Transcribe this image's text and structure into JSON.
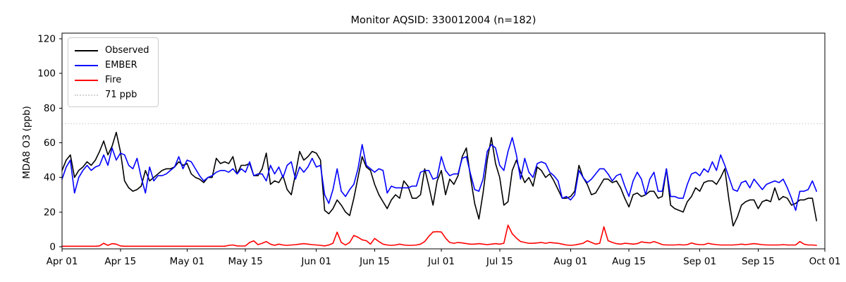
{
  "title": "Monitor AQSID: 330012004 (n=182)",
  "ylabel": "MDA8 O3 (ppb)",
  "legend": {
    "items": [
      {
        "label": "Observed",
        "color": "#000000",
        "style": "solid"
      },
      {
        "label": "EMBER",
        "color": "#0000ff",
        "style": "solid"
      },
      {
        "label": "Fire",
        "color": "#ff0000",
        "style": "solid"
      },
      {
        "label": "71 ppb",
        "color": "#d3d3d3",
        "style": "dotted"
      }
    ]
  },
  "chart_data": {
    "type": "line",
    "title": "Monitor AQSID: 330012004 (n=182)",
    "xlabel": "",
    "ylabel": "MDA8 O3 (ppb)",
    "n_points": 182,
    "x_start": "Apr 01",
    "x_end_data": "Sep 29",
    "ylim": [
      0,
      124
    ],
    "yticks": [
      0,
      20,
      40,
      60,
      80,
      100,
      120
    ],
    "xtick_labels": [
      "Apr 01",
      "Apr 15",
      "May 01",
      "May 15",
      "Jun 01",
      "Jun 15",
      "Jul 01",
      "Jul 15",
      "Aug 01",
      "Aug 15",
      "Sep 01",
      "Sep 15",
      "Oct 01"
    ],
    "xtick_days": [
      0,
      14,
      30,
      44,
      61,
      75,
      91,
      105,
      122,
      136,
      153,
      167,
      183
    ],
    "x_axis_span_days": 183,
    "grid": false,
    "legend_position": "upper left",
    "threshold": {
      "value": 71,
      "label": "71 ppb",
      "color": "#d3d3d3",
      "style": "dotted"
    },
    "series": [
      {
        "name": "Observed",
        "color": "#000000",
        "values": [
          44,
          50,
          53,
          40,
          44,
          46,
          49,
          47,
          50,
          55,
          61,
          53,
          58,
          66,
          55,
          38,
          34,
          32,
          33,
          35,
          44,
          38,
          40,
          42,
          44,
          45,
          45,
          46,
          49,
          47,
          48,
          42,
          40,
          39,
          37,
          40,
          40,
          51,
          48,
          49,
          48,
          52,
          42,
          47,
          47,
          48,
          41,
          41,
          45,
          54,
          36,
          38,
          37,
          41,
          33,
          30,
          42,
          55,
          50,
          52,
          55,
          54,
          50,
          21,
          19,
          22,
          27,
          24,
          20,
          18,
          28,
          40,
          52,
          46,
          44,
          36,
          30,
          26,
          22,
          27,
          30,
          28,
          38,
          35,
          28,
          28,
          30,
          45,
          35,
          24,
          38,
          44,
          30,
          39,
          36,
          41,
          52,
          57,
          40,
          25,
          16,
          31,
          50,
          63,
          48,
          40,
          24,
          26,
          44,
          50,
          43,
          37,
          40,
          35,
          46,
          44,
          40,
          42,
          38,
          33,
          28,
          28,
          29,
          32,
          47,
          40,
          36,
          30,
          31,
          35,
          39,
          39,
          37,
          38,
          34,
          28,
          23,
          30,
          31,
          29,
          30,
          32,
          32,
          28,
          29,
          45,
          24,
          22,
          21,
          20,
          26,
          29,
          34,
          32,
          37,
          38,
          38,
          36,
          40,
          45,
          27,
          12,
          17,
          24,
          26,
          27,
          27,
          22,
          26,
          27,
          26,
          34,
          27,
          29,
          28,
          24,
          25,
          27,
          27,
          28,
          28,
          15
        ]
      },
      {
        "name": "EMBER",
        "color": "#0000ff",
        "values": [
          39,
          46,
          50,
          31,
          40,
          44,
          47,
          44,
          46,
          47,
          53,
          47,
          57,
          50,
          54,
          53,
          47,
          45,
          51,
          40,
          31,
          46,
          38,
          41,
          41,
          42,
          44,
          46,
          52,
          45,
          50,
          49,
          45,
          41,
          38,
          40,
          41,
          43,
          44,
          44,
          43,
          45,
          42,
          45,
          43,
          49,
          41,
          42,
          42,
          38,
          47,
          42,
          46,
          40,
          47,
          49,
          39,
          46,
          43,
          46,
          51,
          46,
          47,
          30,
          25,
          33,
          45,
          32,
          29,
          33,
          36,
          45,
          59,
          47,
          45,
          43,
          45,
          44,
          31,
          35,
          34,
          34,
          34,
          34,
          35,
          35,
          43,
          44,
          44,
          39,
          40,
          52,
          44,
          41,
          42,
          42,
          51,
          52,
          42,
          33,
          32,
          39,
          55,
          59,
          57,
          47,
          44,
          55,
          63,
          53,
          39,
          51,
          43,
          40,
          48,
          49,
          48,
          43,
          41,
          38,
          28,
          29,
          27,
          30,
          44,
          40,
          37,
          39,
          42,
          45,
          45,
          42,
          38,
          41,
          42,
          35,
          29,
          38,
          43,
          39,
          30,
          39,
          43,
          32,
          32,
          45,
          29,
          29,
          28,
          28,
          36,
          42,
          43,
          41,
          45,
          43,
          49,
          44,
          53,
          47,
          40,
          33,
          32,
          37,
          38,
          34,
          39,
          36,
          33,
          36,
          37,
          38,
          37,
          39,
          34,
          28,
          21,
          32,
          32,
          33,
          38,
          32
        ]
      },
      {
        "name": "Fire",
        "color": "#ff0000",
        "values": [
          0.3,
          0.3,
          0.3,
          0.3,
          0.3,
          0.3,
          0.3,
          0.3,
          0.3,
          0.5,
          2,
          0.8,
          1.8,
          1.5,
          0.5,
          0.3,
          0.3,
          0.3,
          0.3,
          0.3,
          0.3,
          0.3,
          0.3,
          0.3,
          0.3,
          0.3,
          0.3,
          0.3,
          0.3,
          0.3,
          0.3,
          0.3,
          0.3,
          0.3,
          0.3,
          0.3,
          0.3,
          0.3,
          0.3,
          0.3,
          0.8,
          1,
          0.5,
          0.4,
          0.5,
          2.5,
          3.4,
          1.2,
          2,
          3,
          1.5,
          0.8,
          1.5,
          1,
          0.8,
          1,
          1.2,
          1.5,
          1.8,
          1.5,
          1.2,
          1,
          0.8,
          0.5,
          1,
          2,
          8.4,
          2.5,
          1,
          2.5,
          6.5,
          5.5,
          4,
          3.5,
          1.5,
          4.8,
          3,
          1.5,
          1,
          0.8,
          1,
          1.5,
          1,
          0.8,
          0.8,
          1,
          1.5,
          3,
          6,
          8.5,
          8.7,
          8.5,
          5,
          2.5,
          2,
          2.5,
          2.2,
          1.8,
          1.5,
          1.5,
          1.8,
          1.5,
          1.2,
          1.5,
          1.8,
          1.5,
          2,
          12.5,
          7.5,
          5,
          3,
          2.5,
          2,
          2,
          2.2,
          2.5,
          2,
          2.5,
          2.2,
          2,
          1.5,
          1,
          0.8,
          1,
          1.5,
          2,
          3.5,
          2.5,
          1.5,
          2,
          11.5,
          3.5,
          2.5,
          1.8,
          1.5,
          2,
          1.8,
          1.5,
          1.8,
          2.8,
          2.5,
          2.2,
          3,
          2.2,
          1.2,
          1,
          1,
          1,
          1.2,
          1,
          1.2,
          2.2,
          1.5,
          1.2,
          1.2,
          2,
          1.5,
          1.2,
          1,
          1,
          1,
          1,
          1.2,
          1.5,
          1.2,
          1.5,
          1.8,
          1.5,
          1.2,
          1,
          1,
          1,
          1,
          1.2,
          1,
          1,
          1,
          3,
          1.5,
          1,
          1,
          0.8
        ]
      }
    ]
  }
}
